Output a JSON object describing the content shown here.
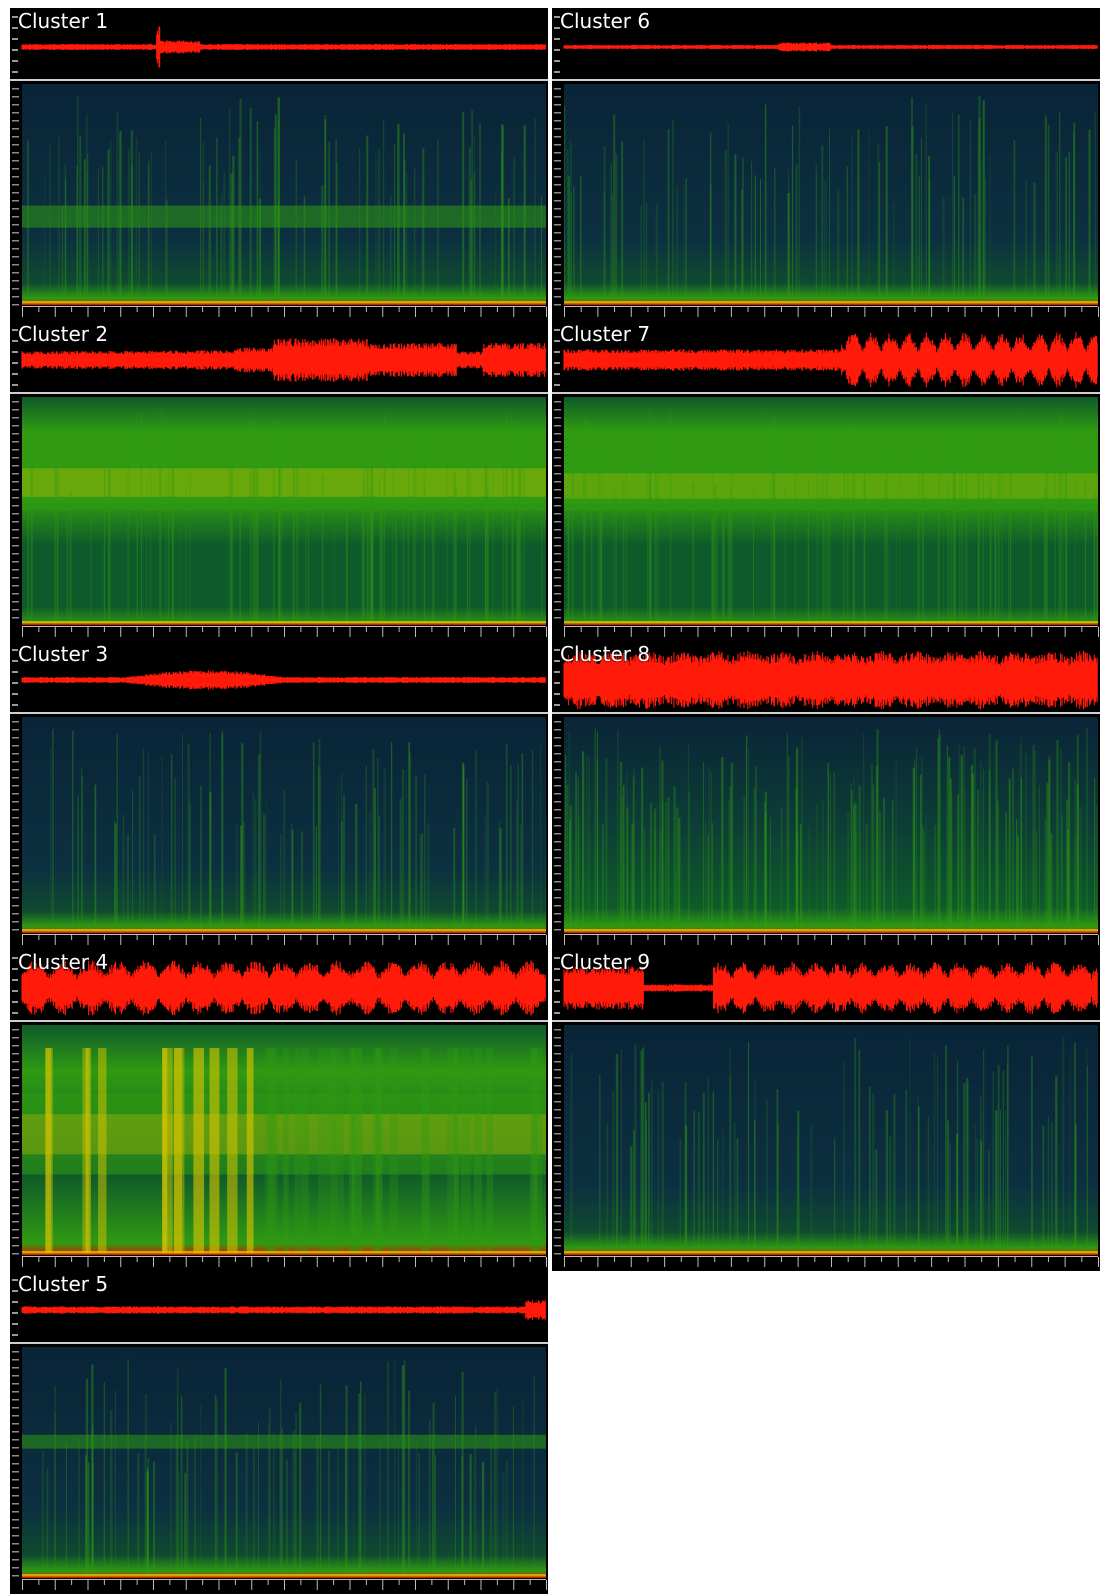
{
  "colors": {
    "background": "#ffffff",
    "panel": "#000000",
    "waveform": "#ff1a0a",
    "separator": "#cfcfcf",
    "spec_dark": "#0a2438",
    "spec_mid": "#0f5a2a",
    "spec_green": "#2f9a12",
    "spec_yellow": "#d8c400",
    "spec_red": "#d41a00"
  },
  "clusters": [
    {
      "label": "Cluster 1"
    },
    {
      "label": "Cluster 2"
    },
    {
      "label": "Cluster 3"
    },
    {
      "label": "Cluster 4"
    },
    {
      "label": "Cluster 5"
    },
    {
      "label": "Cluster 6"
    },
    {
      "label": "Cluster 7"
    },
    {
      "label": "Cluster 8"
    },
    {
      "label": "Cluster 9"
    }
  ]
}
